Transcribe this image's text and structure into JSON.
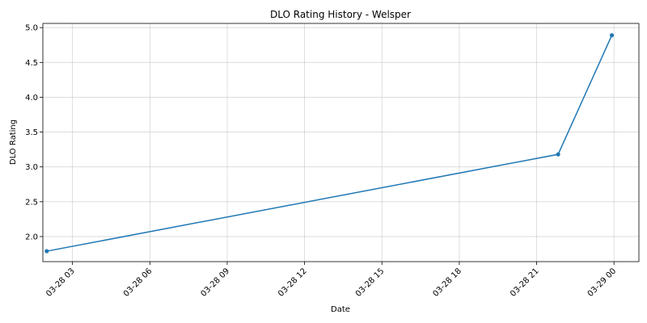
{
  "chart_data": {
    "type": "line",
    "title": "DLO Rating History - Welsper",
    "xlabel": "Date",
    "ylabel": "DLO Rating",
    "x_axis_type": "datetime",
    "x_range": [
      "2024-03-28 01:51",
      "2024-03-29 00:58"
    ],
    "ylim": [
      1.64,
      5.06
    ],
    "x_tick_values": [
      "2024-03-28 03:00",
      "2024-03-28 06:00",
      "2024-03-28 09:00",
      "2024-03-28 12:00",
      "2024-03-28 15:00",
      "2024-03-28 18:00",
      "2024-03-28 21:00",
      "2024-03-29 00:00"
    ],
    "x_tick_labels": [
      "03-28 03",
      "03-28 06",
      "03-28 09",
      "03-28 12",
      "03-28 15",
      "03-28 18",
      "03-28 21",
      "03-29 00"
    ],
    "y_ticks": [
      2.0,
      2.5,
      3.0,
      3.5,
      4.0,
      4.5,
      5.0
    ],
    "y_tick_labels": [
      "2.0",
      "2.5",
      "3.0",
      "3.5",
      "4.0",
      "4.5",
      "5.0"
    ],
    "grid": true,
    "legend": false,
    "series": [
      {
        "color": "#1f77b4",
        "x": [
          "2024-03-28 02:00",
          "2024-03-28 21:50",
          "2024-03-28 23:55"
        ],
        "y": [
          1.79,
          3.18,
          4.89
        ]
      }
    ]
  }
}
